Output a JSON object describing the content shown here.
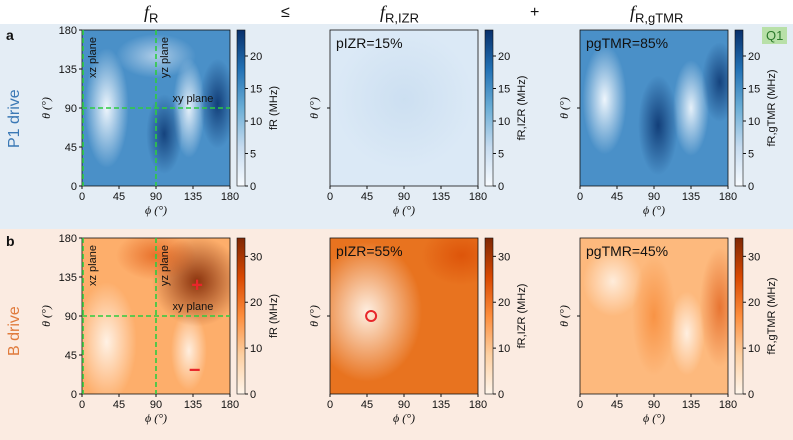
{
  "headers": {
    "col1": "f",
    "col1_sub": "R",
    "op1": "≤",
    "col2": "f",
    "col2_sub": "R,IZR",
    "op2": "+",
    "col3": "f",
    "col3_sub": "R,gTMR"
  },
  "rows": [
    {
      "letter": "a",
      "label": "P1 drive",
      "label_color": "#3a78b5"
    },
    {
      "letter": "b",
      "label": "B drive",
      "label_color": "#e07b3c"
    }
  ],
  "badge": "Q1",
  "colors": {
    "blue_max": "#08306b",
    "orange_max": "#a33a00",
    "guide": "#2ecc40",
    "marker": "#e8262a"
  },
  "chart_data": [
    {
      "type": "heatmap",
      "id": "a1",
      "xlabel": "ϕ (°)",
      "ylabel": "θ (°)",
      "xticks": [
        0,
        45,
        90,
        135,
        180
      ],
      "yticks": [
        0,
        45,
        90,
        135,
        180
      ],
      "xlim": [
        0,
        180
      ],
      "ylim": [
        0,
        180
      ],
      "colorbar": {
        "label": "fR (MHz)",
        "ticks": [
          0,
          5,
          10,
          15,
          20
        ],
        "range": [
          0,
          24
        ],
        "cmap": "blue"
      },
      "annotations": [
        "xz plane",
        "yz plane",
        "xy plane"
      ],
      "guides": {
        "vertical": [
          0,
          90
        ],
        "horizontal": [
          90
        ]
      }
    },
    {
      "type": "heatmap",
      "id": "a2",
      "xlabel": "ϕ (°)",
      "ylabel": "θ (°)",
      "xticks": [
        0,
        45,
        90,
        135,
        180
      ],
      "yticks": [],
      "xlim": [
        0,
        180
      ],
      "ylim": [
        0,
        180
      ],
      "colorbar": {
        "label": "fR,IZR (MHz)",
        "ticks": [
          0,
          5,
          10,
          15,
          20
        ],
        "range": [
          0,
          24
        ],
        "cmap": "blue"
      },
      "text": "pIZR=15%"
    },
    {
      "type": "heatmap",
      "id": "a3",
      "xlabel": "ϕ (°)",
      "ylabel": "θ (°)",
      "xticks": [
        0,
        45,
        90,
        135,
        180
      ],
      "yticks": [],
      "xlim": [
        0,
        180
      ],
      "ylim": [
        0,
        180
      ],
      "colorbar": {
        "label": "fR,gTMR (MHz)",
        "ticks": [
          0,
          5,
          10,
          15,
          20
        ],
        "range": [
          0,
          24
        ],
        "cmap": "blue"
      },
      "text": "pgTMR=85%"
    },
    {
      "type": "heatmap",
      "id": "b1",
      "xlabel": "ϕ (°)",
      "ylabel": "θ (°)",
      "xticks": [
        0,
        45,
        90,
        135,
        180
      ],
      "yticks": [
        0,
        45,
        90,
        135,
        180
      ],
      "xlim": [
        0,
        180
      ],
      "ylim": [
        0,
        180
      ],
      "colorbar": {
        "label": "fR (MHz)",
        "ticks": [
          0,
          10,
          20,
          30
        ],
        "range": [
          0,
          34
        ],
        "cmap": "orange"
      },
      "annotations": [
        "xz plane",
        "yz plane",
        "xy plane"
      ],
      "guides": {
        "vertical": [
          0,
          90
        ],
        "horizontal": [
          90
        ]
      },
      "markers": [
        {
          "symbol": "+",
          "phi": 140,
          "theta": 125
        },
        {
          "symbol": "−",
          "phi": 137,
          "theta": 27
        }
      ]
    },
    {
      "type": "heatmap",
      "id": "b2",
      "xlabel": "ϕ (°)",
      "ylabel": "θ (°)",
      "xticks": [
        0,
        45,
        90,
        135,
        180
      ],
      "yticks": [],
      "xlim": [
        0,
        180
      ],
      "ylim": [
        0,
        180
      ],
      "colorbar": {
        "label": "fR,IZR (MHz)",
        "ticks": [
          0,
          10,
          20,
          30
        ],
        "range": [
          0,
          34
        ],
        "cmap": "orange"
      },
      "text": "pIZR=55%",
      "markers": [
        {
          "symbol": "circle",
          "phi": 50,
          "theta": 90
        }
      ]
    },
    {
      "type": "heatmap",
      "id": "b3",
      "xlabel": "ϕ (°)",
      "ylabel": "θ (°)",
      "xticks": [
        0,
        45,
        90,
        135,
        180
      ],
      "yticks": [],
      "xlim": [
        0,
        180
      ],
      "ylim": [
        0,
        180
      ],
      "colorbar": {
        "label": "fR,gTMR (MHz)",
        "ticks": [
          0,
          10,
          20,
          30
        ],
        "range": [
          0,
          34
        ],
        "cmap": "orange"
      },
      "text": "pgTMR=45%"
    }
  ]
}
